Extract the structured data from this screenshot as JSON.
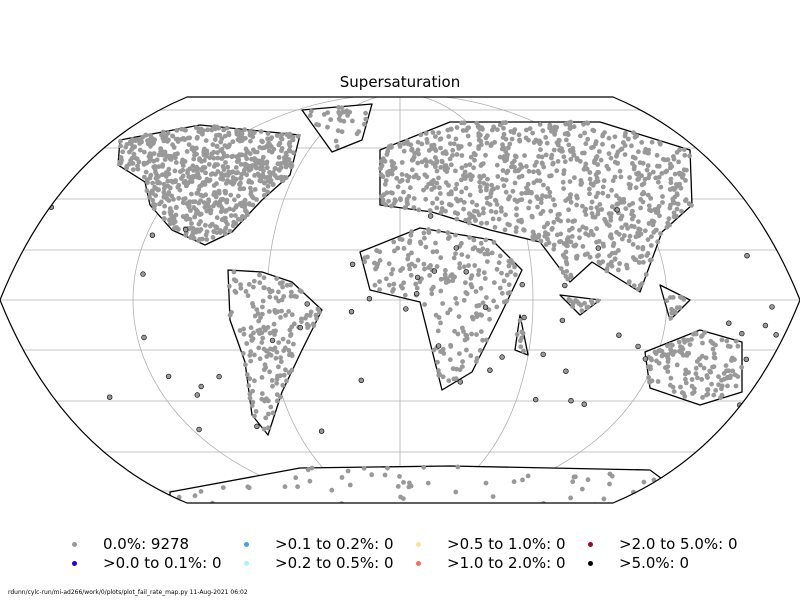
{
  "title": "Supersaturation",
  "colors": {
    "land_points": "#999999",
    "coastline": "#000000",
    "grid": "#b0b0b0"
  },
  "legend": [
    {
      "label": "0.0%: 9278",
      "color": "#999999"
    },
    {
      "label": ">0.0 to 0.1%: 0",
      "color": "#2a00d5"
    },
    {
      "label": ">0.1 to 0.2%: 0",
      "color": "#3f9fff"
    },
    {
      "label": ">0.2 to 0.5%: 0",
      "color": "#aaf5ff"
    },
    {
      "label": ">0.5 to 1.0%: 0",
      "color": "#ffdd99"
    },
    {
      "label": ">1.0 to 2.0%: 0",
      "color": "#f46d5f"
    },
    {
      "label": ">2.0 to 5.0%: 0",
      "color": "#a50026"
    },
    {
      "label": ">5.0%: 0",
      "color": "#000000"
    }
  ],
  "footer": "rdunn/cylc-run/mi-ad266/work/0/plots/plot_fail_rate_map.py   11-Aug-2021 06:02"
}
